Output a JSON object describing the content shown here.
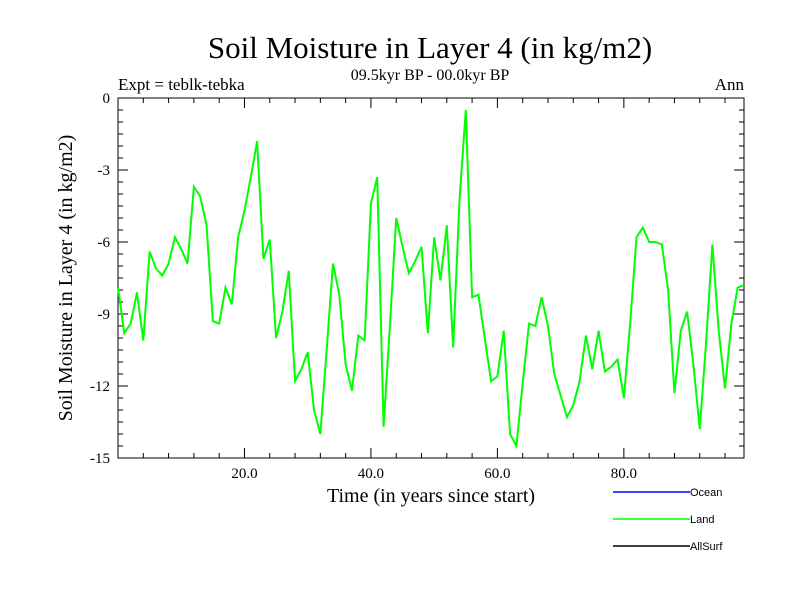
{
  "chart_data": {
    "type": "line",
    "title": "Soil Moisture in Layer 4 (in kg/m2)",
    "subtitle": "09.5kyr BP - 00.0kyr BP",
    "left_label": "Expt = teblk-tebka",
    "right_label": "Ann",
    "xlabel": "Time (in years since start)",
    "ylabel": "Soil Moisture in Layer 4 (in kg/m2)",
    "xlim": [
      0,
      99
    ],
    "ylim": [
      -15,
      0
    ],
    "x_ticks": [
      20,
      40,
      60,
      80
    ],
    "x_tick_labels": [
      "20.0",
      "40.0",
      "60.0",
      "80.0"
    ],
    "y_ticks": [
      0,
      -3,
      -6,
      -9,
      -12,
      -15
    ],
    "y_tick_labels": [
      "0",
      "-3",
      "-6",
      "-9",
      "-12",
      "-15"
    ],
    "legend": [
      {
        "name": "Ocean",
        "color": "#0000ff"
      },
      {
        "name": "Land",
        "color": "#00ff00"
      },
      {
        "name": "AllSurf",
        "color": "#000000"
      }
    ],
    "series": [
      {
        "name": "Land",
        "color": "#00ff00",
        "x": [
          0,
          1,
          2,
          3,
          4,
          5,
          6,
          7,
          8,
          9,
          10,
          11,
          12,
          13,
          14,
          15,
          16,
          17,
          18,
          19,
          20,
          21,
          22,
          23,
          24,
          25,
          26,
          27,
          28,
          29,
          30,
          31,
          32,
          33,
          34,
          35,
          36,
          37,
          38,
          39,
          40,
          41,
          42,
          43,
          44,
          45,
          46,
          47,
          48,
          49,
          50,
          51,
          52,
          53,
          54,
          55,
          56,
          57,
          58,
          59,
          60,
          61,
          62,
          63,
          64,
          65,
          66,
          67,
          68,
          69,
          70,
          71,
          72,
          73,
          74,
          75,
          76,
          77,
          78,
          79,
          80,
          81,
          82,
          83,
          84,
          85,
          86,
          87,
          88,
          89,
          90,
          91,
          92,
          93,
          94,
          95,
          96,
          97,
          98,
          99
        ],
        "values": [
          -7.9,
          -9.8,
          -9.4,
          -8.1,
          -10.1,
          -6.4,
          -7.1,
          -7.4,
          -6.9,
          -5.8,
          -6.3,
          -6.9,
          -3.7,
          -4.1,
          -5.3,
          -9.3,
          -9.4,
          -7.9,
          -8.6,
          -5.8,
          -4.7,
          -3.3,
          -1.8,
          -6.7,
          -5.9,
          -10.0,
          -8.9,
          -7.2,
          -11.8,
          -11.3,
          -10.6,
          -13.0,
          -14.0,
          -10.5,
          -6.9,
          -8.2,
          -11.1,
          -12.2,
          -9.9,
          -10.1,
          -4.4,
          -3.3,
          -13.7,
          -9.5,
          -5.0,
          -6.2,
          -7.3,
          -6.8,
          -6.2,
          -9.8,
          -5.8,
          -7.6,
          -5.3,
          -10.4,
          -4.3,
          -0.5,
          -8.3,
          -8.2,
          -10.0,
          -11.8,
          -11.6,
          -9.7,
          -14.0,
          -14.5,
          -11.9,
          -9.4,
          -9.5,
          -8.3,
          -9.5,
          -11.5,
          -12.4,
          -13.3,
          -12.8,
          -11.8,
          -9.9,
          -11.3,
          -9.7,
          -11.4,
          -11.2,
          -10.9,
          -12.5,
          -9.4,
          -5.8,
          -5.4,
          -6.0,
          -6.0,
          -6.1,
          -8.0,
          -12.3,
          -9.7,
          -8.9,
          -11.1,
          -13.8,
          -10.2,
          -6.1,
          -9.7,
          -12.1,
          -9.4,
          -7.9,
          -7.8
        ]
      }
    ]
  }
}
